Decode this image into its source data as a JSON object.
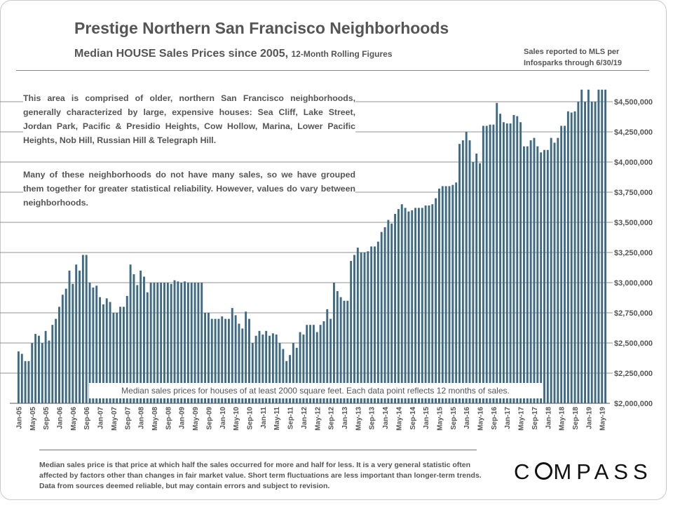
{
  "header": {
    "title": "Prestige Northern San Francisco Neighborhoods",
    "subtitle_main": "Median HOUSE Sales Prices since 2005,",
    "subtitle_small": "12-Month Rolling Figures",
    "source_line1": "Sales reported to MLS per",
    "source_line2": "Infosparks through 6/30/19"
  },
  "description": {
    "paragraph1": "This area is comprised of older, northern San Francisco neighborhoods, generally characterized by large, expensive houses: Sea Cliff, Lake Street, Jordan Park, Pacific & Presidio Heights, Cow Hollow, Marina, Lower Pacific Heights, Nob Hill, Russian Hill & Telegraph Hill.",
    "paragraph2": "Many of these neighborhoods do not have many sales, so we have grouped them together for greater statistical reliability. However, values do vary between neighborhoods."
  },
  "chart_note": "Median sales prices for houses of at least 2000  square feet. Each data point reflects 12 months of sales.",
  "footer": {
    "text": "Median sales price is that price at which half the sales occurred for more and half for less. It is a very general statistic often affected by factors other than changes in fair market value. Short term fluctuations are less important than longer-term trends. Data from sources deemed reliable, but may contain errors and subject to revision.",
    "logo_c": "C",
    "logo_rest": "MPASS"
  },
  "chart_data": {
    "type": "bar",
    "title": "Median HOUSE Sales Prices since 2005, 12-Month Rolling Figures",
    "xlabel": "",
    "ylabel": "",
    "ylim": [
      2000000,
      4500000
    ],
    "grid": true,
    "bar_color": "#3f6a83",
    "y_ticks": [
      {
        "value": 2000000,
        "label": "$2,000,000"
      },
      {
        "value": 2250000,
        "label": "$2,250,000"
      },
      {
        "value": 2500000,
        "label": "$2,500,000"
      },
      {
        "value": 2750000,
        "label": "$2,750,000"
      },
      {
        "value": 3000000,
        "label": "$3,000,000"
      },
      {
        "value": 3250000,
        "label": "$3,250,000"
      },
      {
        "value": 3500000,
        "label": "$3,500,000"
      },
      {
        "value": 3750000,
        "label": "$3,750,000"
      },
      {
        "value": 4000000,
        "label": "$4,000,000"
      },
      {
        "value": 4250000,
        "label": "$4,250,000"
      },
      {
        "value": 4500000,
        "label": "$4,500,000"
      }
    ],
    "x_tick_labels": [
      "Jan-05",
      "May-05",
      "Sep-05",
      "Jan-06",
      "May-06",
      "Sep-06",
      "Jan-07",
      "May-07",
      "Sep-07",
      "Jan-08",
      "May-08",
      "Sep-08",
      "Jan-09",
      "May-09",
      "Sep-09",
      "Jan-10",
      "May-10",
      "Sep-10",
      "Jan-11",
      "May-11",
      "Sep-11",
      "Jan-12",
      "May-12",
      "Sep-12",
      "Jan-13",
      "May-13",
      "Sep-13",
      "Jan-14",
      "May-14",
      "Sep-14",
      "Jan-15",
      "May-15",
      "Sep-15",
      "Jan-16",
      "May-16",
      "Sep-16",
      "Jan-17",
      "May-17",
      "Sep-17",
      "Jan-18",
      "May-18",
      "Sep-18",
      "Jan-19",
      "May-19"
    ],
    "start_month": "Jan-05",
    "end_month": "Jun-19",
    "values": [
      2430000,
      2410000,
      2350000,
      2350000,
      2500000,
      2575000,
      2560000,
      2500000,
      2600000,
      2520000,
      2650000,
      2700000,
      2800000,
      2900000,
      2950000,
      3100000,
      2990000,
      3150000,
      3100000,
      3230000,
      3230000,
      3000000,
      2960000,
      2975000,
      2880000,
      2820000,
      2870000,
      2840000,
      2750000,
      2750000,
      2800000,
      2800000,
      2890000,
      3150000,
      3070000,
      2980000,
      3100000,
      3050000,
      2920000,
      3000000,
      3000000,
      3000000,
      3000000,
      3000000,
      3000000,
      2990000,
      3020000,
      3010000,
      3000000,
      3010000,
      3000000,
      3000000,
      3000000,
      3000000,
      3000000,
      2750000,
      2750000,
      2700000,
      2700000,
      2700000,
      2720000,
      2700000,
      2700000,
      2790000,
      2730000,
      2660000,
      2620000,
      2760000,
      2700000,
      2500000,
      2560000,
      2600000,
      2570000,
      2600000,
      2560000,
      2580000,
      2570000,
      2500000,
      2450000,
      2350000,
      2400000,
      2500000,
      2460000,
      2590000,
      2570000,
      2650000,
      2650000,
      2650000,
      2590000,
      2650000,
      2680000,
      2780000,
      2700000,
      3000000,
      2930000,
      2880000,
      2850000,
      2850000,
      3180000,
      3230000,
      3290000,
      3250000,
      3250000,
      3260000,
      3300000,
      3300000,
      3340000,
      3420000,
      3460000,
      3520000,
      3490000,
      3570000,
      3610000,
      3650000,
      3620000,
      3590000,
      3600000,
      3620000,
      3620000,
      3620000,
      3640000,
      3640000,
      3650000,
      3700000,
      3780000,
      3800000,
      3800000,
      3800000,
      3810000,
      3830000,
      4150000,
      4180000,
      4250000,
      4180000,
      4000000,
      4070000,
      3990000,
      4300000,
      4300000,
      4310000,
      4310000,
      4490000,
      4400000,
      4330000,
      4320000,
      4320000,
      4390000,
      4380000,
      4330000,
      4130000,
      4130000,
      4180000,
      4200000,
      4130000,
      4080000,
      4100000,
      4100000,
      4200000,
      4160000,
      4200000,
      4300000,
      4300000,
      4420000,
      4410000,
      4420000,
      4500000,
      4600000,
      4500000,
      4600000,
      4500000,
      4500000,
      4600000,
      4600000,
      4600000
    ]
  }
}
